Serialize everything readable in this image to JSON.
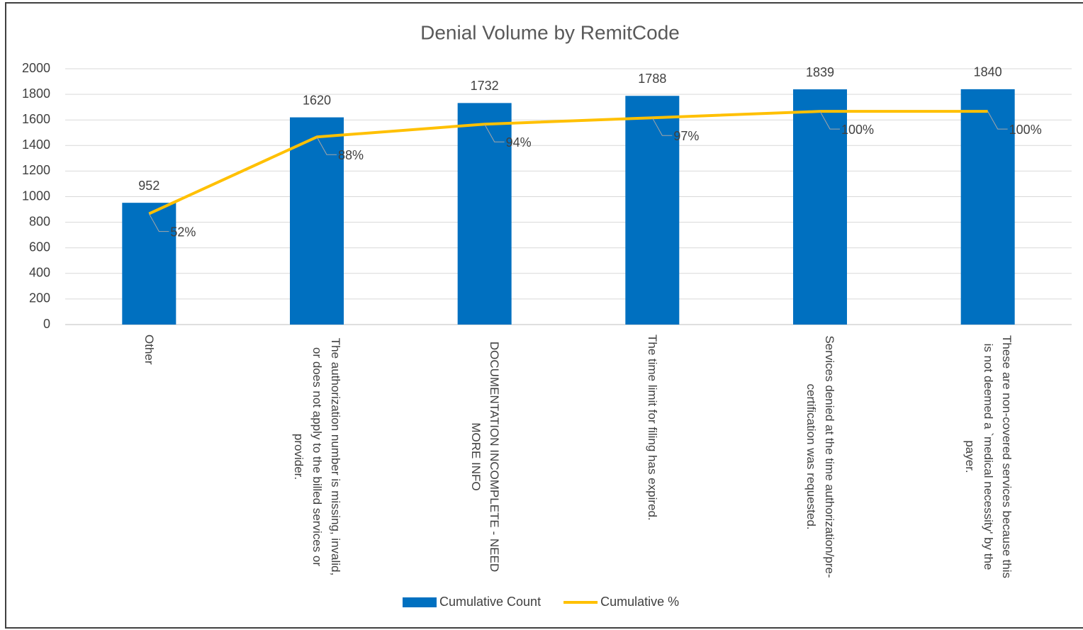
{
  "chart_data": {
    "type": "bar",
    "title": "Denial Volume by RemitCode",
    "categories": [
      "Other",
      "The authorization number is missing, invalid, or does not apply to the billed services or provider.",
      "DOCUMENTATION INCOMPLETE - NEED MORE INFO",
      "The time limit for filing has expired.",
      "Services denied at the time authorization/pre-certification was requested.",
      "These are non-covered services because this is not deemed a `medical necessity' by the payer."
    ],
    "series": [
      {
        "name": "Cumulative Count",
        "type": "bar",
        "color": "#0070c0",
        "values": [
          952,
          1620,
          1732,
          1788,
          1839,
          1840
        ]
      },
      {
        "name": "Cumulative %",
        "type": "line",
        "axis": "y2",
        "color": "#ffc000",
        "values": [
          52,
          88,
          94,
          97,
          100,
          100
        ],
        "value_labels": [
          "52%",
          "88%",
          "94%",
          "97%",
          "100%",
          "100%"
        ]
      }
    ],
    "ylim": [
      0,
      2000
    ],
    "yticks": [
      0,
      200,
      400,
      600,
      800,
      1000,
      1200,
      1400,
      1600,
      1800,
      2000
    ],
    "y2lim": [
      0,
      120
    ],
    "grid": true,
    "legend": "bottom"
  }
}
